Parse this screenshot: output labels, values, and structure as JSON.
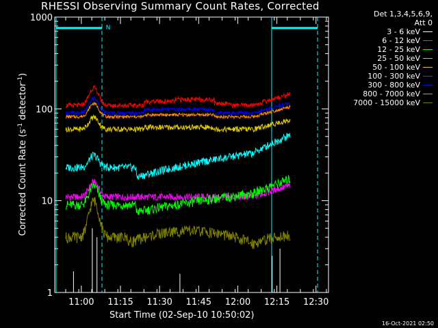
{
  "chart_data": {
    "type": "line",
    "title": "RHESSI Observing Summary Count Rates, Corrected",
    "xlabel": "Start Time (02-Sep-10 10:50:02)",
    "ylabel_main": "Corrected Count Rate (s",
    "ylabel_sup1": "-1",
    "ylabel_mid": " detector",
    "ylabel_sup2": "-1",
    "ylabel_end": ")",
    "y_scale": "log",
    "ylim": [
      1,
      1000
    ],
    "y_ticks": [
      {
        "value": 1,
        "label": "1"
      },
      {
        "value": 10,
        "label": "10"
      },
      {
        "value": 100,
        "label": "100"
      },
      {
        "value": 1000,
        "label": "1000"
      }
    ],
    "x_range_minutes": [
      10.83,
      12.58
    ],
    "x_ticks": [
      {
        "value": 11.0,
        "label": "11:00"
      },
      {
        "value": 11.25,
        "label": "11:15"
      },
      {
        "value": 11.5,
        "label": "11:30"
      },
      {
        "value": 11.75,
        "label": "11:45"
      },
      {
        "value": 12.0,
        "label": "12:00"
      },
      {
        "value": 12.25,
        "label": "12:15"
      },
      {
        "value": 12.5,
        "label": "12:30"
      }
    ],
    "legend_header": [
      "Det 1,3,4,5,6,9,",
      "Att 0"
    ],
    "legend_placement": "right",
    "flag_label": "N",
    "series": [
      {
        "name": "3 - 6 keV",
        "color": "#ffffff"
      },
      {
        "name": "6 - 12 keV",
        "color": "#ff00ff"
      },
      {
        "name": "12 - 25 keV",
        "color": "#00ff00"
      },
      {
        "name": "25 - 50 keV",
        "color": "#00ffff"
      },
      {
        "name": "50 - 100 keV",
        "color": "#e0c800"
      },
      {
        "name": "100 - 300 keV",
        "color": "#ff0000"
      },
      {
        "name": "300 - 800 keV",
        "color": "#0000ff"
      },
      {
        "name": "800 - 7000 keV",
        "color": "#ff8c00"
      },
      {
        "name": "7000 - 15000 keV",
        "color": "#808000"
      }
    ]
  },
  "footer": {
    "timestamp": "16-Oct-2021 02:50"
  }
}
